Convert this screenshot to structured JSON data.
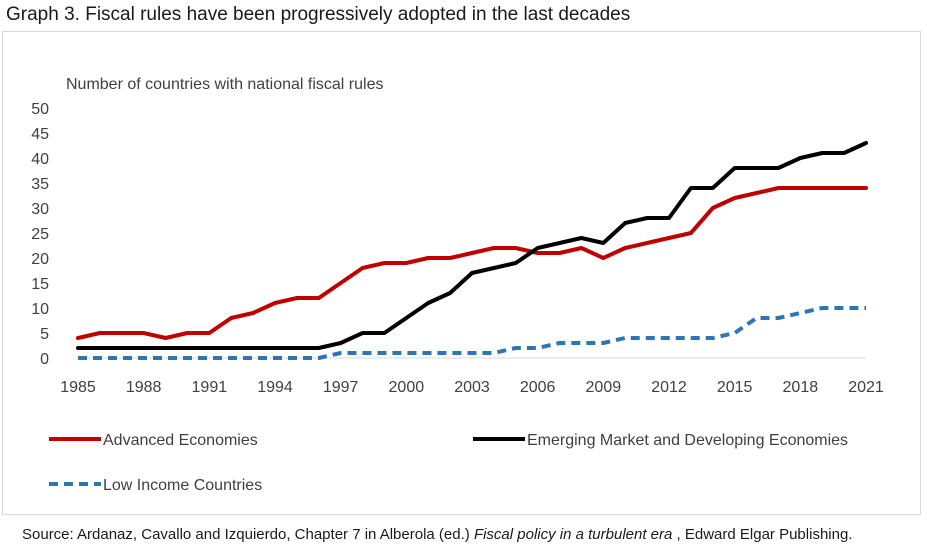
{
  "page": {
    "title": "Graph 3. Fiscal rules have been progressively adopted in the last decades",
    "source": {
      "prefix": "Source: Ardanaz, Cavallo and Izquierdo, Chapter 7 in Alberola (ed.) ",
      "italic": "Fiscal policy in a turbulent era",
      "suffix": " , Edward Elgar Publishing."
    }
  },
  "chart_data": {
    "type": "line",
    "ylabel": "Number of countries with national fiscal rules",
    "ylim": [
      0,
      50
    ],
    "yticks": [
      0,
      5,
      10,
      15,
      20,
      25,
      30,
      35,
      40,
      45,
      50
    ],
    "xlim": [
      1985,
      2021
    ],
    "xticks": [
      1985,
      1988,
      1991,
      1994,
      1997,
      2000,
      2003,
      2006,
      2009,
      2012,
      2015,
      2018,
      2021
    ],
    "x": [
      1985,
      1986,
      1987,
      1988,
      1989,
      1990,
      1991,
      1992,
      1993,
      1994,
      1995,
      1996,
      1997,
      1998,
      1999,
      2000,
      2001,
      2002,
      2003,
      2004,
      2005,
      2006,
      2007,
      2008,
      2009,
      2010,
      2011,
      2012,
      2013,
      2014,
      2015,
      2016,
      2017,
      2018,
      2019,
      2020,
      2021
    ],
    "grid": false,
    "legend_position": "bottom",
    "series": [
      {
        "name": "Advanced Economies",
        "color": "#c00000",
        "dash": "solid",
        "values": [
          4,
          5,
          5,
          5,
          4,
          5,
          5,
          8,
          9,
          11,
          12,
          12,
          15,
          18,
          19,
          19,
          20,
          20,
          21,
          22,
          22,
          21,
          21,
          22,
          20,
          22,
          23,
          24,
          25,
          30,
          32,
          33,
          34,
          34,
          34,
          34,
          34
        ]
      },
      {
        "name": "Emerging Market and Developing Economies",
        "color": "#000000",
        "dash": "solid",
        "values": [
          2,
          2,
          2,
          2,
          2,
          2,
          2,
          2,
          2,
          2,
          2,
          2,
          3,
          5,
          5,
          8,
          11,
          13,
          17,
          18,
          19,
          22,
          23,
          24,
          23,
          27,
          28,
          28,
          34,
          34,
          38,
          38,
          38,
          40,
          41,
          41,
          43
        ]
      },
      {
        "name": "Low Income Countries",
        "color": "#2e75b6",
        "dash": "dashed",
        "values": [
          0,
          0,
          0,
          0,
          0,
          0,
          0,
          0,
          0,
          0,
          0,
          0,
          1,
          1,
          1,
          1,
          1,
          1,
          1,
          1,
          2,
          2,
          3,
          3,
          3,
          4,
          4,
          4,
          4,
          4,
          5,
          8,
          8,
          9,
          10,
          10,
          10
        ]
      }
    ]
  }
}
